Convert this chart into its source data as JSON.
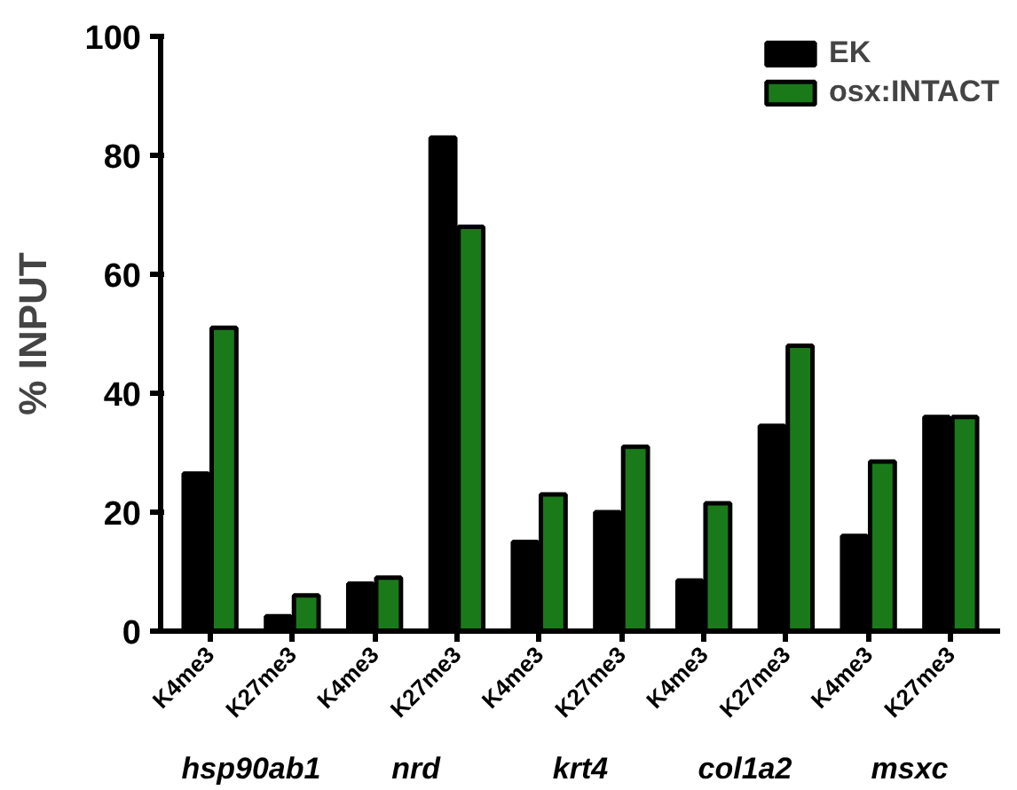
{
  "chart_data": {
    "type": "bar",
    "ylabel": "% INPUT",
    "categories": [
      "K4me3",
      "K27me3",
      "K4me3",
      "K27me3",
      "K4me3",
      "K27me3",
      "K4me3",
      "K27me3",
      "K4me3",
      "K27me3"
    ],
    "series": [
      {
        "name": "EK",
        "color": "#000000",
        "values": [
          26.5,
          2.5,
          8,
          83,
          15,
          20,
          8.5,
          34.5,
          16,
          36
        ]
      },
      {
        "name": "osx:INTACT",
        "color": "#1a7a1a",
        "values": [
          51,
          6,
          9,
          68,
          23,
          31,
          21.5,
          48,
          28.5,
          36
        ]
      }
    ],
    "annotations": [
      "hsp90ab1",
      "nrd",
      "krt4",
      "col1a2",
      "msxc"
    ],
    "ylim": [
      0,
      100
    ],
    "yticks": [
      0,
      20,
      40,
      60,
      80,
      100
    ],
    "grid": false,
    "legend": "top right"
  }
}
